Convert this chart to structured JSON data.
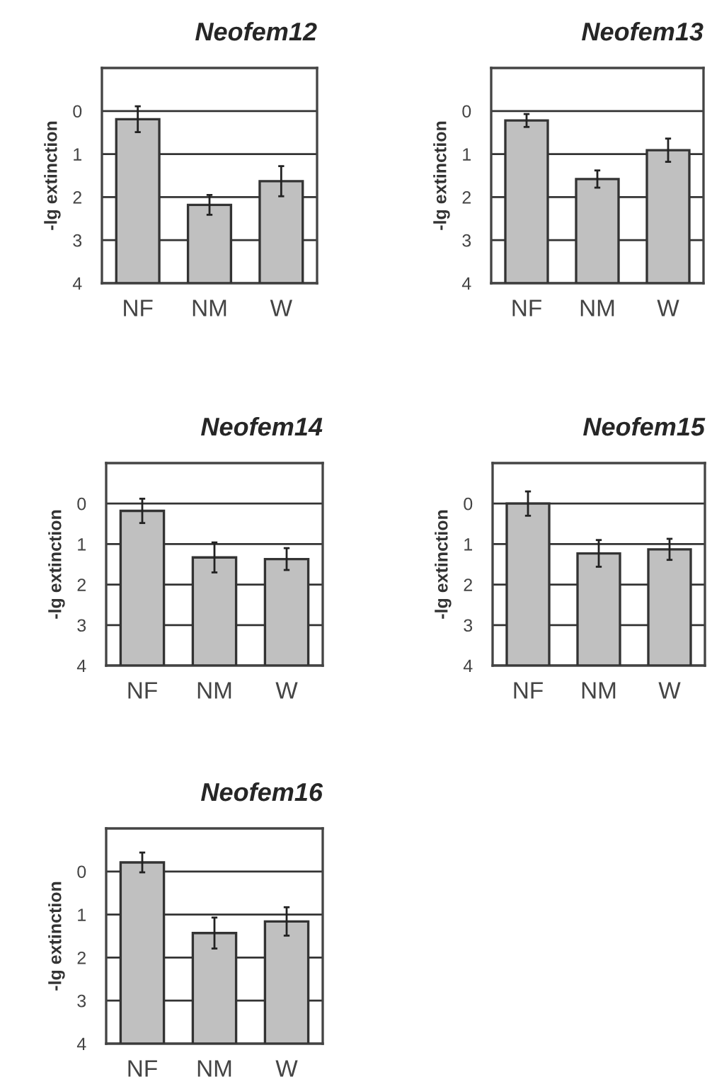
{
  "chart_data": [
    {
      "type": "bar",
      "title": "Neofem12",
      "ylabel": "-lg extinction",
      "categories": [
        "NF",
        "NM",
        "W"
      ],
      "base": [
        4,
        4,
        4
      ],
      "values": [
        -3.81,
        -1.82,
        -2.37
      ],
      "errors": [
        0.3,
        0.23,
        0.35
      ],
      "color": "#c0c0c0",
      "ylim": [
        4,
        -1
      ],
      "yticks": [
        0,
        1,
        2,
        3,
        4
      ],
      "grid": "y"
    },
    {
      "type": "bar",
      "title": "Neofem13",
      "ylabel": "-lg extinction",
      "categories": [
        "NF",
        "NM",
        "W"
      ],
      "base": [
        4,
        4,
        4
      ],
      "values": [
        -3.78,
        -2.42,
        -3.09
      ],
      "errors": [
        0.15,
        0.2,
        0.27
      ],
      "color": "#c0c0c0",
      "ylim": [
        4,
        -1
      ],
      "yticks": [
        0,
        1,
        2,
        3,
        4
      ],
      "grid": "y"
    },
    {
      "type": "bar",
      "title": "Neofem14",
      "ylabel": "-lg extinction",
      "categories": [
        "NF",
        "NM",
        "W"
      ],
      "base": [
        4,
        4,
        4
      ],
      "values": [
        -3.82,
        -2.67,
        -2.63
      ],
      "errors": [
        0.3,
        0.37,
        0.27
      ],
      "color": "#c0c0c0",
      "ylim": [
        4,
        -1
      ],
      "yticks": [
        0,
        1,
        2,
        3,
        4
      ],
      "grid": "y"
    },
    {
      "type": "bar",
      "title": "Neofem15",
      "ylabel": "-lg extinction",
      "categories": [
        "NF",
        "NM",
        "W"
      ],
      "base": [
        4,
        4,
        4
      ],
      "values": [
        -4.0,
        -2.77,
        -2.87
      ],
      "errors": [
        0.3,
        0.33,
        0.26
      ],
      "color": "#c0c0c0",
      "ylim": [
        4,
        -1
      ],
      "yticks": [
        0,
        1,
        2,
        3,
        4
      ],
      "grid": "y"
    },
    {
      "type": "bar",
      "title": "Neofem16",
      "ylabel": "-lg extinction",
      "categories": [
        "NF",
        "NM",
        "W"
      ],
      "base": [
        4,
        4,
        4
      ],
      "values": [
        -4.21,
        -2.57,
        -2.84
      ],
      "errors": [
        0.23,
        0.36,
        0.33
      ],
      "color": "#c0c0c0",
      "ylim": [
        4,
        -1
      ],
      "yticks": [
        0,
        1,
        2,
        3,
        4
      ],
      "grid": "y"
    }
  ]
}
